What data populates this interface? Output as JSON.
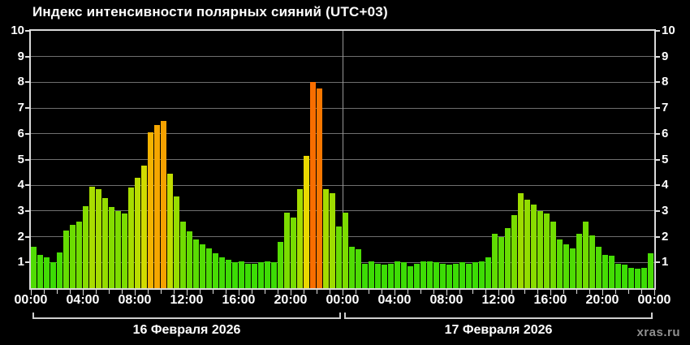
{
  "watermark": "xras.ru",
  "colors": {
    "background": "#000000",
    "text": "#ffffff",
    "grid": "#6f6f6f",
    "axis_frame": "#d9d9d9",
    "day_divider_line": "#979797",
    "watermark_text": "#8f8f8f",
    "bar_color_scale": [
      {
        "value": 1.0,
        "color": "#3cdc05"
      },
      {
        "value": 3.0,
        "color": "#7edc00"
      },
      {
        "value": 4.5,
        "color": "#c2dc00"
      },
      {
        "value": 5.2,
        "color": "#ecd800"
      },
      {
        "value": 6.3,
        "color": "#f5a800"
      },
      {
        "value": 8.0,
        "color": "#f86e00"
      }
    ]
  },
  "chart_data": {
    "type": "bar",
    "title": "Индекс интенсивности полярных сияний (UTC+03)",
    "xlabel": "",
    "ylabel": "",
    "ylim": [
      0,
      10
    ],
    "y_ticks": [
      10,
      9,
      8,
      7,
      6,
      5,
      4,
      3,
      2,
      1
    ],
    "grid": "on",
    "legend": "none",
    "bar_interval_minutes": 30,
    "x_tick_labels": [
      "00:00",
      "04:00",
      "08:00",
      "12:00",
      "16:00",
      "20:00",
      "00:00",
      "04:00",
      "08:00",
      "12:00",
      "16:00",
      "20:00",
      "00:00"
    ],
    "days": [
      {
        "label": "16 Февраля 2026",
        "values": [
          1.6,
          1.3,
          1.2,
          1.0,
          1.4,
          2.25,
          2.45,
          2.6,
          3.2,
          3.95,
          3.85,
          3.5,
          3.15,
          3.0,
          2.9,
          3.9,
          4.3,
          4.75,
          6.05,
          6.35,
          6.5,
          4.45,
          3.55,
          2.6,
          2.2,
          1.9,
          1.7,
          1.55,
          1.35,
          1.2,
          1.1,
          1.0,
          1.05,
          0.95,
          0.95,
          1.0,
          1.05,
          1.0,
          1.8,
          2.95,
          2.75,
          3.85,
          5.15,
          8.0,
          7.75,
          3.85,
          3.7,
          2.4
        ]
      },
      {
        "label": "17 Февраля 2026",
        "values": [
          2.95,
          1.6,
          1.5,
          0.95,
          1.05,
          0.95,
          0.9,
          0.95,
          1.05,
          1.0,
          0.85,
          0.95,
          1.05,
          1.05,
          1.0,
          0.95,
          0.9,
          0.95,
          1.0,
          0.95,
          1.0,
          1.05,
          1.2,
          2.1,
          2.0,
          2.35,
          2.85,
          3.7,
          3.45,
          3.25,
          3.0,
          2.9,
          2.6,
          1.9,
          1.7,
          1.55,
          2.1,
          2.6,
          2.05,
          1.6,
          1.3,
          1.25,
          0.95,
          0.9,
          0.8,
          0.75,
          0.8,
          1.35
        ]
      }
    ]
  }
}
